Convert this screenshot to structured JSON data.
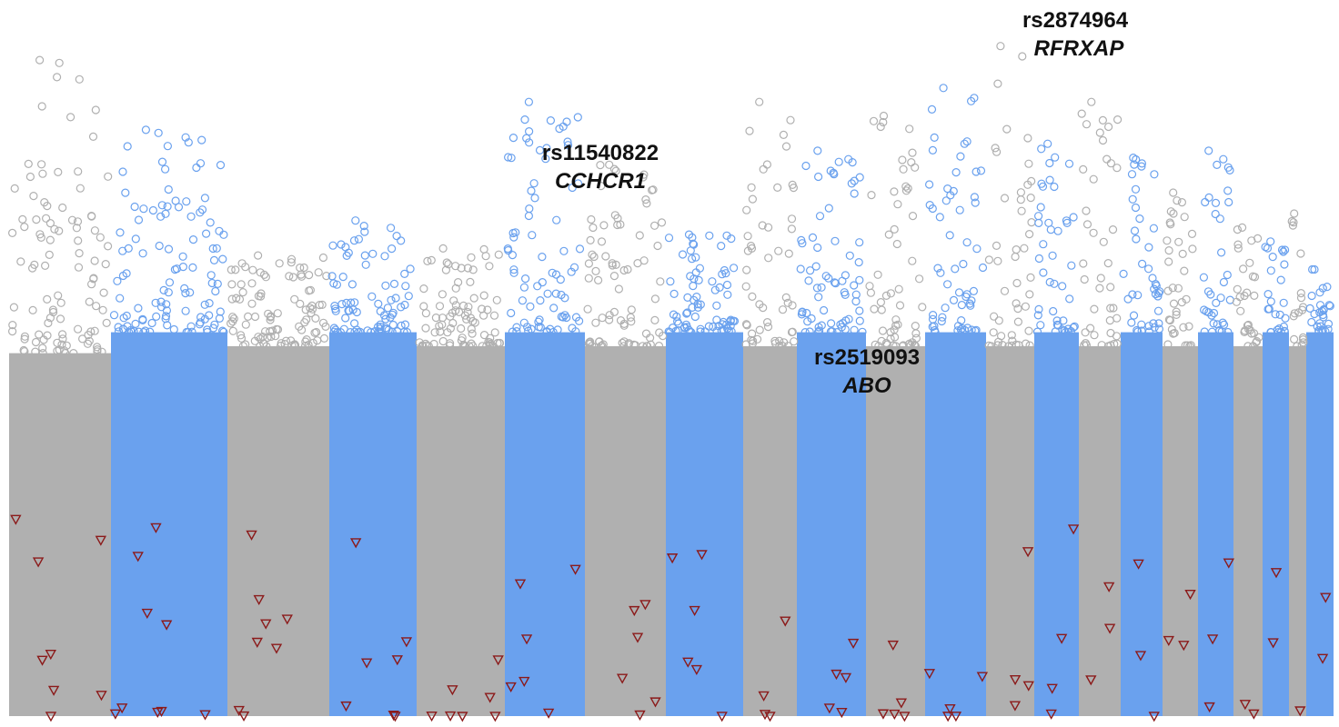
{
  "chart_data": {
    "type": "scatter",
    "style": "manhattan",
    "title": "",
    "xlabel": "",
    "ylabel": "",
    "chromosome_colors": [
      "#b0b0b0",
      "#6aa1ee"
    ],
    "special_marker_color": "#8b1a1a",
    "chromosomes": [
      {
        "index": 1,
        "color_group": 0,
        "peak": 0.94,
        "band_top": 0.52
      },
      {
        "index": 2,
        "color_group": 1,
        "peak": 0.84,
        "band_top": 0.55
      },
      {
        "index": 3,
        "color_group": 0,
        "peak": 0.66,
        "band_top": 0.53
      },
      {
        "index": 4,
        "color_group": 1,
        "peak": 0.71,
        "band_top": 0.55
      },
      {
        "index": 5,
        "color_group": 0,
        "peak": 0.67,
        "band_top": 0.53
      },
      {
        "index": 6,
        "color_group": 1,
        "peak": 0.88,
        "band_top": 0.55
      },
      {
        "index": 7,
        "color_group": 0,
        "peak": 0.79,
        "band_top": 0.53
      },
      {
        "index": 8,
        "color_group": 1,
        "peak": 0.69,
        "band_top": 0.55
      },
      {
        "index": 9,
        "color_group": 0,
        "peak": 0.88,
        "band_top": 0.53
      },
      {
        "index": 10,
        "color_group": 1,
        "peak": 0.81,
        "band_top": 0.55
      },
      {
        "index": 11,
        "color_group": 0,
        "peak": 0.86,
        "band_top": 0.53
      },
      {
        "index": 12,
        "color_group": 1,
        "peak": 0.9,
        "band_top": 0.55
      },
      {
        "index": 13,
        "color_group": 0,
        "peak": 0.96,
        "band_top": 0.53
      },
      {
        "index": 14,
        "color_group": 1,
        "peak": 0.82,
        "band_top": 0.55
      },
      {
        "index": 15,
        "color_group": 0,
        "peak": 0.88,
        "band_top": 0.53
      },
      {
        "index": 16,
        "color_group": 1,
        "peak": 0.8,
        "band_top": 0.55
      },
      {
        "index": 17,
        "color_group": 0,
        "peak": 0.75,
        "band_top": 0.53
      },
      {
        "index": 18,
        "color_group": 1,
        "peak": 0.81,
        "band_top": 0.55
      },
      {
        "index": 19,
        "color_group": 0,
        "peak": 0.7,
        "band_top": 0.53
      },
      {
        "index": 20,
        "color_group": 1,
        "peak": 0.68,
        "band_top": 0.55
      },
      {
        "index": 21,
        "color_group": 0,
        "peak": 0.72,
        "band_top": 0.53
      },
      {
        "index": 22,
        "color_group": 1,
        "peak": 0.64,
        "band_top": 0.55
      }
    ],
    "annotations": [
      {
        "snp": "rs11540822",
        "gene": "CCHCR1",
        "chromosome": 6
      },
      {
        "snp": "rs2519093",
        "gene": "ABO",
        "chromosome": 9
      },
      {
        "snp": "rs2874964",
        "gene": "RFRXAP",
        "chromosome": 13
      }
    ]
  }
}
